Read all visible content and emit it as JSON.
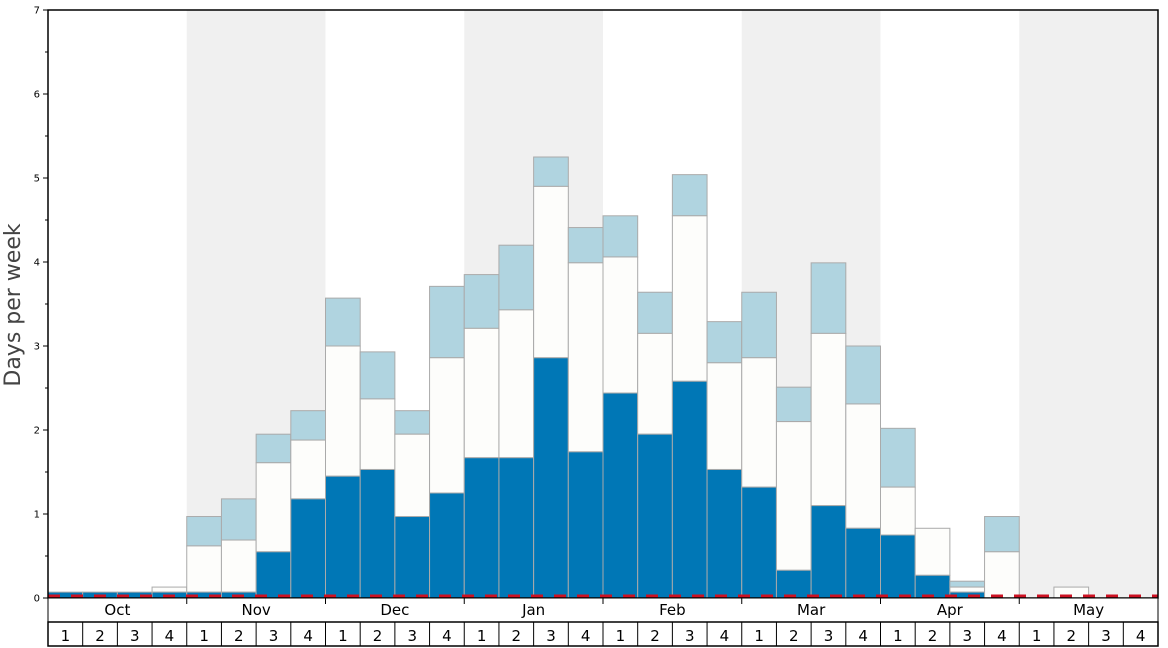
{
  "chart_data": {
    "type": "bar",
    "ylabel": "Days per week",
    "ylim": [
      0,
      7
    ],
    "y_ticks": [
      0,
      1,
      2,
      3,
      4,
      5,
      6,
      7
    ],
    "months": [
      "Oct",
      "Nov",
      "Dec",
      "Jan",
      "Feb",
      "Mar",
      "Apr",
      "May"
    ],
    "week_labels": [
      "1",
      "2",
      "3",
      "4"
    ],
    "colors": {
      "bottom": "#0077b6",
      "middle": "#fdfdfb",
      "top": "#b0d4e0",
      "bar_stroke": "#aaaaaa",
      "shade": "#f0f0f0",
      "dashed_line": "#cc1122"
    },
    "series": [
      {
        "values": [
          0.07,
          0.07,
          0.07,
          0.07,
          0.07,
          0.07,
          0.55,
          1.18,
          1.45,
          1.53,
          0.97,
          1.25,
          1.67,
          1.67,
          2.86,
          1.74,
          2.44,
          1.95,
          2.58,
          1.53,
          1.32,
          0.33,
          1.1,
          0.83,
          0.75,
          0.27,
          0.07,
          0.0,
          0.0,
          0.0,
          0.0,
          0.0
        ]
      },
      {
        "values": [
          0.07,
          0.07,
          0.07,
          0.13,
          0.62,
          0.69,
          1.61,
          1.88,
          3.0,
          2.37,
          1.95,
          2.86,
          3.21,
          3.43,
          4.9,
          3.99,
          4.06,
          3.15,
          4.55,
          2.8,
          2.86,
          2.1,
          3.15,
          2.31,
          1.32,
          0.83,
          0.13,
          0.55,
          0.0,
          0.13,
          0.0,
          0.0
        ]
      },
      {
        "values": [
          0.07,
          0.07,
          0.07,
          0.13,
          0.97,
          1.18,
          1.95,
          2.23,
          3.57,
          2.93,
          2.23,
          3.71,
          3.85,
          4.2,
          5.25,
          4.41,
          4.55,
          3.64,
          5.04,
          3.29,
          3.64,
          2.51,
          3.99,
          3.0,
          2.02,
          0.83,
          0.2,
          0.97,
          0.0,
          0.13,
          0.0,
          0.0
        ]
      }
    ],
    "dashed_line_value": 0.0
  }
}
